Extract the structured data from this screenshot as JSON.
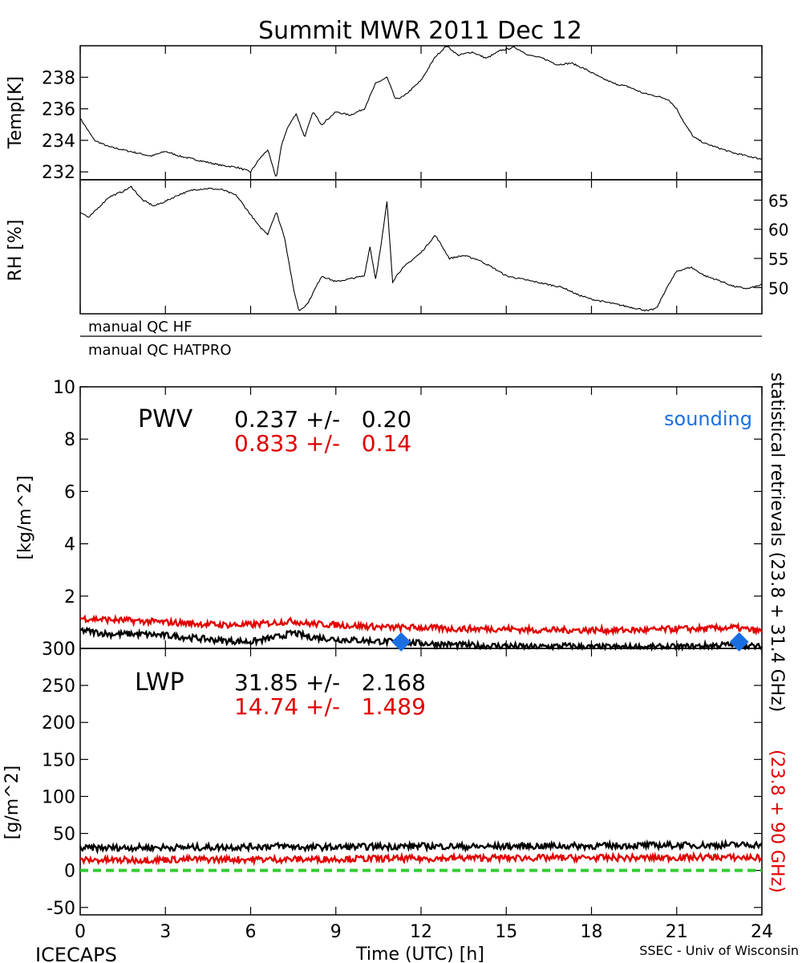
{
  "figure": {
    "title": "Summit MWR 2011 Dec 12",
    "footer_left": "ICECAPS",
    "footer_right": "SSEC - Univ of Wisconsin",
    "x_axis_label": "Time (UTC) [h]",
    "x_ticks": [
      "0",
      "3",
      "6",
      "9",
      "12",
      "15",
      "18",
      "21",
      "24"
    ],
    "right_label_black": "statistical retrievals (23.8 + 31.4 GHz)",
    "right_label_red": "(23.8 + 90 GHz)",
    "qc_labels": [
      "manual QC HF",
      "manual QC HATPRO"
    ],
    "colors": {
      "black_series": "#000000",
      "red_series": "#e00000",
      "sounding": "#1a6fe0",
      "zero_line": "#33cc33"
    }
  },
  "panels": {
    "temp": {
      "ylabel": "Temp[K]",
      "ticks": [
        "232",
        "234",
        "236",
        "238"
      ]
    },
    "rh": {
      "ylabel": "RH [%]",
      "ticks": [
        "50",
        "55",
        "60",
        "65"
      ]
    },
    "pwv": {
      "ylabel": "[kg/m^2]",
      "ticks": [
        "0",
        "2",
        "4",
        "6",
        "8",
        "10"
      ],
      "name": "PWV",
      "stat_black": "0.237 +/-   0.20",
      "stat_red": "0.833 +/-   0.14",
      "legend_sounding": "sounding"
    },
    "lwp": {
      "ylabel": "[g/m^2]",
      "ticks": [
        "-50",
        "0",
        "50",
        "100",
        "150",
        "200",
        "250",
        "300"
      ],
      "name": "LWP",
      "stat_black": "31.85 +/-   2.168",
      "stat_red": "14.74 +/-   1.489"
    }
  },
  "chart_data": [
    {
      "type": "line",
      "title": "Summit MWR 2011 Dec 12",
      "xlabel": "",
      "ylabel": "Temp[K]",
      "xlim": [
        0,
        24
      ],
      "ylim": [
        231.5,
        240
      ],
      "series": [
        {
          "color": "#000000",
          "x": [
            0,
            0.5,
            1,
            1.5,
            2,
            2.5,
            3,
            3.5,
            4,
            4.5,
            5,
            5.5,
            6,
            6.3,
            6.6,
            6.9,
            7.1,
            7.3,
            7.6,
            7.9,
            8.2,
            8.5,
            9,
            9.5,
            10,
            10.4,
            10.8,
            11.1,
            11.4,
            12,
            12.5,
            12.9,
            13.3,
            13.8,
            14.3,
            14.8,
            15.3,
            15.8,
            16.3,
            16.8,
            17.3,
            17.8,
            18.3,
            18.8,
            19.3,
            19.8,
            20.3,
            20.7,
            21.0,
            21.3,
            21.6,
            22.0,
            22.5,
            23.0,
            23.5,
            24
          ],
          "y": [
            235.4,
            234.0,
            233.6,
            233.4,
            233.2,
            233.0,
            233.3,
            233.0,
            232.8,
            232.6,
            232.4,
            232.3,
            232.0,
            232.8,
            233.4,
            231.6,
            233.8,
            234.8,
            235.7,
            234.2,
            235.8,
            235.0,
            235.8,
            235.6,
            236.0,
            237.6,
            238.0,
            236.6,
            236.8,
            237.8,
            239.3,
            240.0,
            239.4,
            239.6,
            239.2,
            239.7,
            239.9,
            239.4,
            239.2,
            238.8,
            238.9,
            238.5,
            238.0,
            237.6,
            237.4,
            237.0,
            236.8,
            236.6,
            236.0,
            235.0,
            234.2,
            233.8,
            233.5,
            233.2,
            233.0,
            232.8
          ]
        }
      ]
    },
    {
      "type": "line",
      "title": "",
      "xlabel": "",
      "ylabel": "RH [%]",
      "xlim": [
        0,
        24
      ],
      "ylim": [
        45.5,
        68.5
      ],
      "series": [
        {
          "color": "#000000",
          "x": [
            0,
            0.3,
            0.6,
            1.0,
            1.5,
            1.8,
            2.2,
            2.6,
            3.0,
            3.5,
            4.0,
            4.5,
            5.0,
            5.5,
            6.0,
            6.3,
            6.6,
            6.9,
            7.2,
            7.5,
            7.7,
            8.0,
            8.5,
            9.0,
            9.5,
            10.0,
            10.2,
            10.4,
            10.6,
            10.8,
            11.0,
            11.2,
            11.5,
            12.0,
            12.5,
            13.0,
            13.5,
            14.0,
            14.5,
            15.0,
            15.5,
            16.0,
            16.5,
            17.0,
            17.5,
            18.0,
            18.5,
            19.0,
            19.5,
            20.0,
            20.3,
            20.6,
            21.0,
            21.5,
            22.0,
            22.5,
            23.0,
            23.5,
            24
          ],
          "y": [
            63.0,
            62.0,
            63.5,
            65.5,
            66.5,
            67.3,
            65.0,
            64.0,
            64.8,
            66.0,
            66.8,
            67.0,
            66.8,
            65.8,
            62.5,
            60.5,
            59.2,
            63.0,
            58.5,
            50.0,
            46.0,
            47.2,
            52.0,
            51.0,
            51.5,
            52.0,
            57.0,
            51.5,
            57.5,
            64.8,
            51.0,
            52.5,
            54.0,
            56.0,
            59.0,
            55.0,
            55.5,
            54.8,
            53.5,
            52.0,
            51.5,
            51.0,
            50.5,
            50.0,
            48.8,
            48.0,
            47.5,
            47.0,
            46.5,
            46.0,
            46.5,
            49.5,
            52.8,
            53.5,
            52.0,
            51.2,
            50.2,
            49.8,
            50.5
          ]
        }
      ]
    },
    {
      "type": "line",
      "title": "",
      "xlabel": "",
      "ylabel": "[kg/m^2]",
      "xlim": [
        0,
        24
      ],
      "ylim": [
        0,
        10
      ],
      "series": [
        {
          "color": "#000000",
          "x": [
            0,
            1,
            2,
            3,
            4,
            5,
            6,
            7,
            7.5,
            8,
            9,
            10,
            11,
            12,
            13,
            14,
            15,
            16,
            17,
            18,
            19,
            20,
            21,
            22,
            23,
            24
          ],
          "y": [
            0.7,
            0.55,
            0.55,
            0.5,
            0.4,
            0.3,
            0.25,
            0.45,
            0.6,
            0.45,
            0.35,
            0.3,
            0.25,
            0.2,
            0.15,
            0.1,
            0.1,
            0.05,
            0.1,
            0.05,
            0.05,
            0.05,
            0.05,
            0.1,
            0.15,
            0.05
          ]
        },
        {
          "color": "#e00000",
          "x": [
            0,
            1,
            2,
            3,
            4,
            5,
            6,
            7,
            7.5,
            8,
            9,
            10,
            11,
            12,
            13,
            14,
            15,
            16,
            17,
            18,
            19,
            20,
            21,
            22,
            23,
            24
          ],
          "y": [
            1.15,
            1.1,
            1.05,
            1.0,
            0.95,
            0.9,
            0.9,
            1.0,
            1.05,
            0.95,
            0.9,
            0.85,
            0.8,
            0.8,
            0.75,
            0.75,
            0.75,
            0.7,
            0.7,
            0.7,
            0.7,
            0.7,
            0.75,
            0.75,
            0.8,
            0.65
          ]
        },
        {
          "name": "sounding",
          "color": "#1a6fe0",
          "marker": "diamond",
          "x": [
            11.3,
            23.2
          ],
          "y": [
            0.25,
            0.25
          ]
        }
      ]
    },
    {
      "type": "line",
      "title": "",
      "xlabel": "Time (UTC) [h]",
      "ylabel": "[g/m^2]",
      "xlim": [
        0,
        24
      ],
      "ylim": [
        -60,
        300
      ],
      "series": [
        {
          "color": "#000000",
          "x": [
            0,
            2,
            4,
            6,
            7,
            8,
            10,
            12,
            14,
            16,
            18,
            20,
            22,
            24
          ],
          "y": [
            30,
            31,
            31,
            32,
            33,
            31,
            32,
            33,
            32,
            33,
            33,
            34,
            34,
            35
          ]
        },
        {
          "color": "#e00000",
          "x": [
            0,
            2,
            4,
            6,
            7,
            8,
            10,
            12,
            14,
            16,
            18,
            20,
            22,
            24
          ],
          "y": [
            14,
            14,
            15,
            15,
            15,
            15,
            16,
            16,
            17,
            17,
            17,
            17,
            18,
            17
          ]
        },
        {
          "color": "#33cc33",
          "style": "dashed",
          "x": [
            0,
            24
          ],
          "y": [
            0,
            0
          ]
        }
      ]
    }
  ]
}
